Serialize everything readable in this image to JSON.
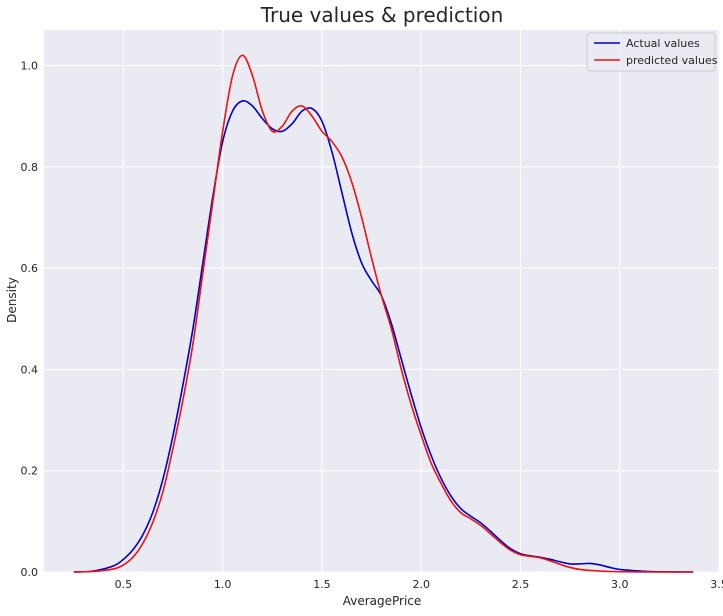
{
  "chart_data": {
    "type": "line",
    "title": "True values & prediction",
    "xlabel": "AveragePrice",
    "ylabel": "Density",
    "xlim": [
      0.1,
      3.5
    ],
    "ylim": [
      0,
      1.07
    ],
    "x_ticks": [
      0.5,
      1.0,
      1.5,
      2.0,
      2.5,
      3.0,
      3.5
    ],
    "x_tick_labels": [
      "0.5",
      "1.0",
      "1.5",
      "2.0",
      "2.5",
      "3.0",
      "3.5"
    ],
    "y_ticks": [
      0.0,
      0.2,
      0.4,
      0.6,
      0.8,
      1.0
    ],
    "y_tick_labels": [
      "0.0",
      "0.2",
      "0.4",
      "0.6",
      "0.8",
      "1.0"
    ],
    "grid": true,
    "legend_position": "top-right",
    "background_color": "#eaeaf2",
    "grid_color": "#ffffff",
    "series": [
      {
        "name": "Actual values",
        "color": "#0000cc",
        "x": [
          0.25,
          0.35,
          0.45,
          0.5,
          0.55,
          0.6,
          0.65,
          0.7,
          0.75,
          0.8,
          0.85,
          0.9,
          0.95,
          1.0,
          1.05,
          1.1,
          1.15,
          1.2,
          1.25,
          1.3,
          1.35,
          1.4,
          1.45,
          1.5,
          1.55,
          1.6,
          1.65,
          1.7,
          1.75,
          1.8,
          1.85,
          1.9,
          1.95,
          2.0,
          2.05,
          2.1,
          2.15,
          2.2,
          2.25,
          2.3,
          2.35,
          2.4,
          2.45,
          2.5,
          2.55,
          2.6,
          2.65,
          2.7,
          2.75,
          2.8,
          2.85,
          2.9,
          2.95,
          3.0,
          3.1,
          3.2,
          3.37
        ],
        "y": [
          0.0,
          0.002,
          0.012,
          0.025,
          0.045,
          0.075,
          0.12,
          0.185,
          0.27,
          0.37,
          0.48,
          0.61,
          0.74,
          0.85,
          0.91,
          0.93,
          0.92,
          0.895,
          0.875,
          0.87,
          0.885,
          0.91,
          0.915,
          0.89,
          0.83,
          0.75,
          0.67,
          0.61,
          0.575,
          0.545,
          0.49,
          0.42,
          0.35,
          0.285,
          0.23,
          0.185,
          0.15,
          0.125,
          0.11,
          0.097,
          0.08,
          0.062,
          0.046,
          0.036,
          0.032,
          0.029,
          0.025,
          0.02,
          0.016,
          0.016,
          0.017,
          0.014,
          0.009,
          0.005,
          0.002,
          0.0005,
          0.0
        ]
      },
      {
        "name": "predicted values",
        "color": "#ee1111",
        "x": [
          0.25,
          0.35,
          0.45,
          0.5,
          0.55,
          0.6,
          0.65,
          0.7,
          0.75,
          0.8,
          0.85,
          0.9,
          0.95,
          1.0,
          1.05,
          1.1,
          1.15,
          1.2,
          1.25,
          1.3,
          1.35,
          1.4,
          1.45,
          1.5,
          1.55,
          1.6,
          1.65,
          1.7,
          1.75,
          1.8,
          1.85,
          1.9,
          1.95,
          2.0,
          2.05,
          2.1,
          2.15,
          2.2,
          2.25,
          2.3,
          2.35,
          2.4,
          2.45,
          2.5,
          2.55,
          2.6,
          2.65,
          2.7,
          2.75,
          2.8,
          2.85,
          2.9,
          2.95,
          3.0,
          3.1,
          3.2,
          3.37
        ],
        "y": [
          0.0,
          0.001,
          0.006,
          0.014,
          0.03,
          0.058,
          0.1,
          0.16,
          0.245,
          0.34,
          0.45,
          0.59,
          0.73,
          0.87,
          0.98,
          1.02,
          0.98,
          0.91,
          0.87,
          0.88,
          0.91,
          0.92,
          0.9,
          0.87,
          0.85,
          0.82,
          0.77,
          0.7,
          0.62,
          0.545,
          0.48,
          0.4,
          0.33,
          0.27,
          0.215,
          0.175,
          0.14,
          0.117,
          0.105,
          0.092,
          0.075,
          0.058,
          0.043,
          0.034,
          0.031,
          0.028,
          0.022,
          0.015,
          0.009,
          0.005,
          0.003,
          0.002,
          0.001,
          0.0005,
          0.0002,
          0.0,
          0.0
        ]
      }
    ]
  }
}
